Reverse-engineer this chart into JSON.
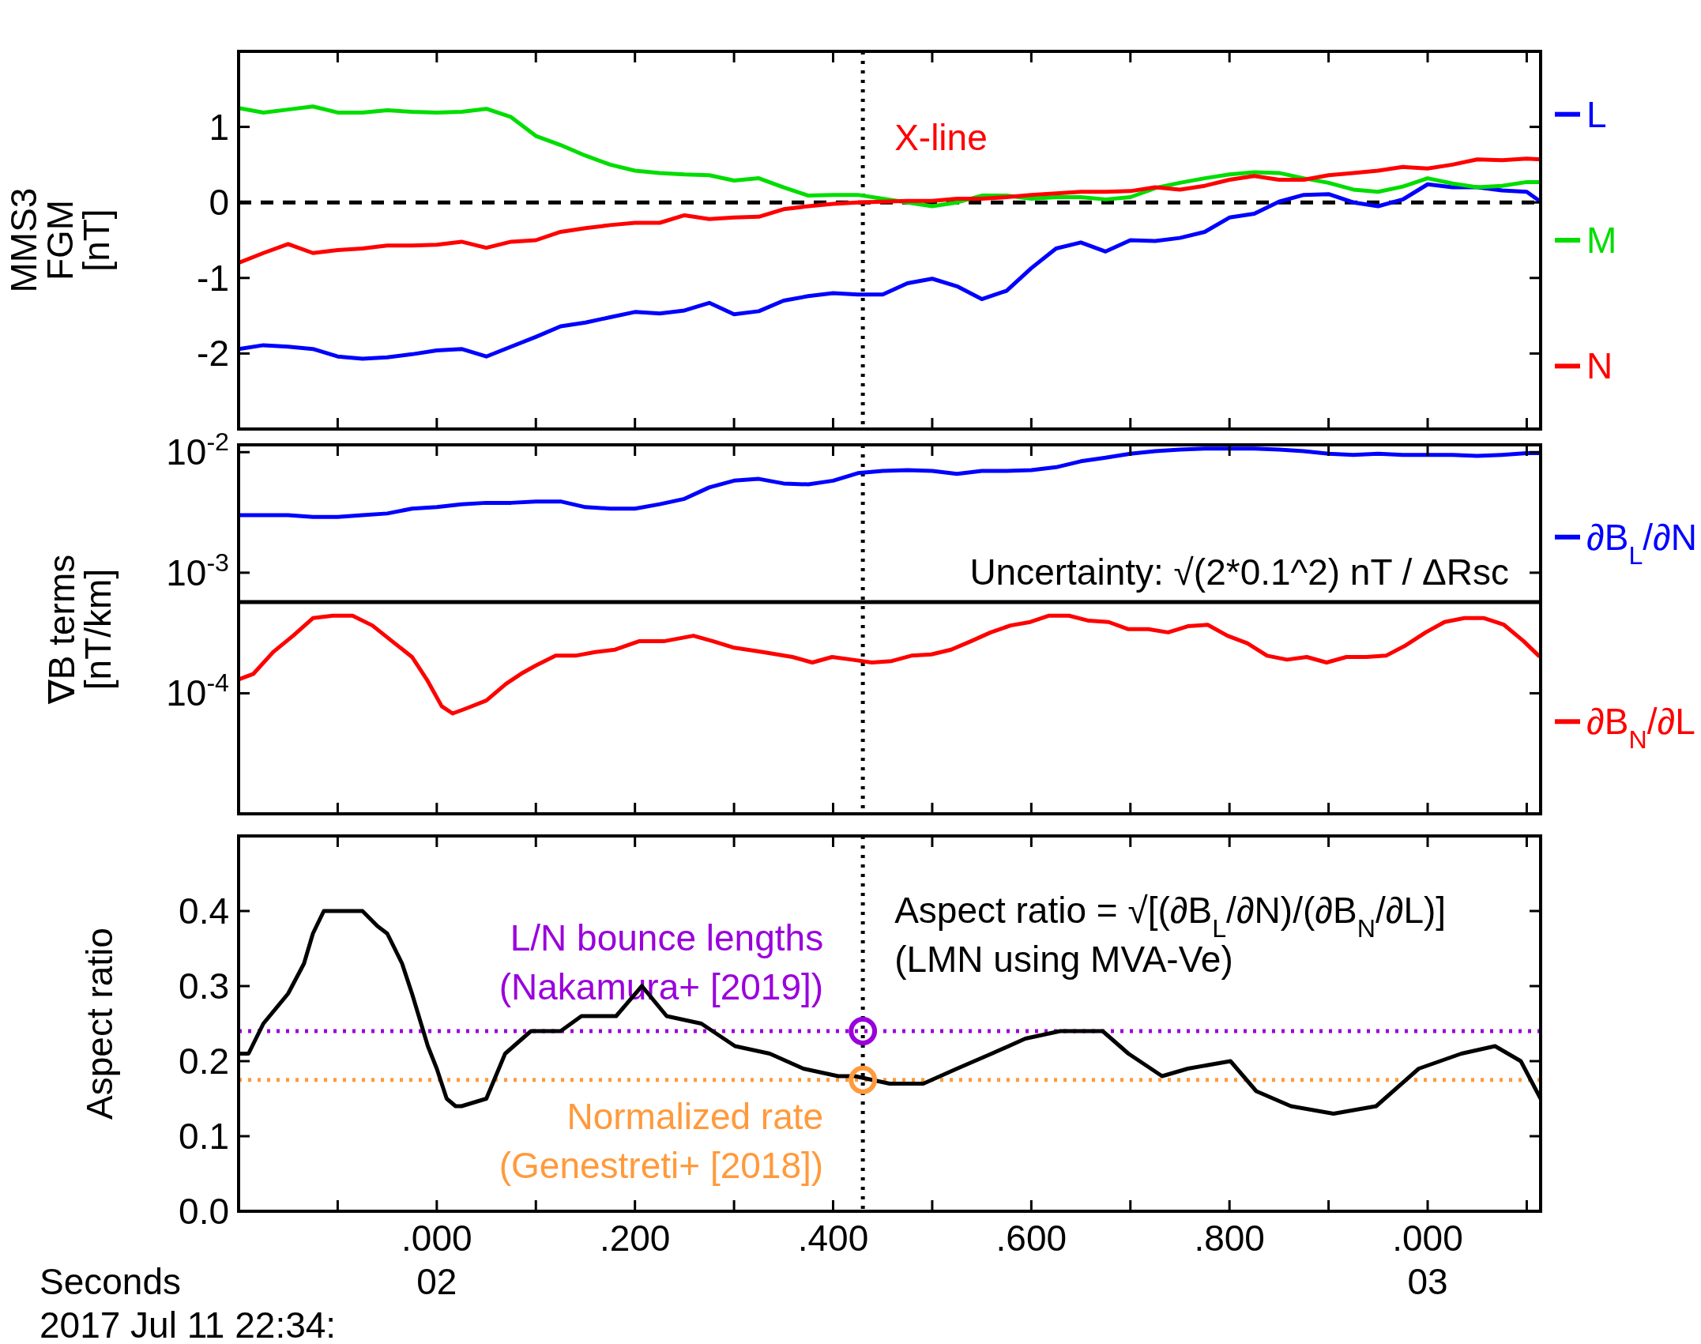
{
  "chart_data": [
    {
      "type": "line",
      "ylabel": "MMS3\nFGM\n[nT]",
      "xlim": [
        -0.2,
        1.114
      ],
      "ylim": [
        -3,
        2
      ],
      "xticks": [
        {
          "value": -0.1,
          "label": null
        },
        {
          "value": 0,
          "label": null
        },
        {
          "value": 0.1,
          "label": null
        },
        {
          "value": 0.2,
          "label": null
        },
        {
          "value": 0.3,
          "label": null
        },
        {
          "value": 0.4,
          "label": null
        },
        {
          "value": 0.5,
          "label": null
        },
        {
          "value": 0.6,
          "label": null
        },
        {
          "value": 0.7,
          "label": null
        },
        {
          "value": 0.8,
          "label": null
        },
        {
          "value": 0.9,
          "label": null
        },
        {
          "value": 1.0,
          "label": null
        },
        {
          "value": 1.1,
          "label": null
        }
      ],
      "yticks": [
        -2,
        -1,
        0,
        1
      ],
      "tick_labels": "y",
      "legend": "right",
      "x": [
        -0.2,
        -0.175,
        -0.15,
        -0.125,
        -0.1,
        -0.075,
        -0.05,
        -0.025,
        0,
        0.025,
        0.05,
        0.075,
        0.1,
        0.125,
        0.15,
        0.175,
        0.2,
        0.225,
        0.25,
        0.275,
        0.3,
        0.325,
        0.35,
        0.375,
        0.4,
        0.425,
        0.45,
        0.475,
        0.5,
        0.525,
        0.55,
        0.575,
        0.6,
        0.625,
        0.65,
        0.675,
        0.7,
        0.725,
        0.75,
        0.775,
        0.8,
        0.825,
        0.85,
        0.875,
        0.9,
        0.925,
        0.95,
        0.975,
        1,
        1.025,
        1.05,
        1.075,
        1.1,
        1.114
      ],
      "series": [
        {
          "name": "L",
          "color": "#0000ff",
          "values": [
            -1.94,
            -1.89,
            -1.91,
            -1.94,
            -2.04,
            -2.07,
            -2.05,
            -2.01,
            -1.96,
            -1.94,
            -2.04,
            -1.91,
            -1.78,
            -1.64,
            -1.59,
            -1.52,
            -1.45,
            -1.47,
            -1.43,
            -1.33,
            -1.48,
            -1.44,
            -1.3,
            -1.24,
            -1.2,
            -1.22,
            -1.22,
            -1.07,
            -1.01,
            -1.11,
            -1.28,
            -1.17,
            -0.87,
            -0.61,
            -0.53,
            -0.65,
            -0.5,
            -0.51,
            -0.47,
            -0.39,
            -0.2,
            -0.15,
            0.01,
            0.1,
            0.11,
            0.0,
            -0.05,
            0.04,
            0.24,
            0.2,
            0.2,
            0.16,
            0.14,
            0.01
          ]
        },
        {
          "name": "M",
          "color": "#00dd00",
          "values": [
            1.25,
            1.19,
            1.23,
            1.27,
            1.19,
            1.19,
            1.22,
            1.2,
            1.19,
            1.2,
            1.24,
            1.13,
            0.88,
            0.76,
            0.62,
            0.5,
            0.42,
            0.39,
            0.37,
            0.36,
            0.29,
            0.32,
            0.2,
            0.09,
            0.1,
            0.1,
            0.05,
            0.0,
            -0.05,
            0.0,
            0.09,
            0.09,
            0.05,
            0.07,
            0.07,
            0.04,
            0.07,
            0.19,
            0.26,
            0.32,
            0.37,
            0.4,
            0.39,
            0.32,
            0.26,
            0.17,
            0.14,
            0.21,
            0.32,
            0.25,
            0.2,
            0.22,
            0.27,
            0.27
          ]
        },
        {
          "name": "N",
          "color": "#ff0000",
          "values": [
            -0.8,
            -0.67,
            -0.55,
            -0.67,
            -0.63,
            -0.61,
            -0.57,
            -0.57,
            -0.56,
            -0.52,
            -0.6,
            -0.52,
            -0.5,
            -0.39,
            -0.34,
            -0.3,
            -0.27,
            -0.27,
            -0.17,
            -0.22,
            -0.2,
            -0.19,
            -0.09,
            -0.05,
            -0.02,
            0.0,
            0.01,
            0.02,
            0.02,
            0.05,
            0.05,
            0.07,
            0.1,
            0.12,
            0.14,
            0.14,
            0.15,
            0.2,
            0.17,
            0.22,
            0.3,
            0.35,
            0.3,
            0.3,
            0.36,
            0.39,
            0.42,
            0.47,
            0.45,
            0.5,
            0.57,
            0.56,
            0.58,
            0.57
          ]
        }
      ],
      "ref_lines": [
        {
          "axis": "x",
          "value": 0.43,
          "label": "X-line",
          "color": "#000000",
          "line_style": "dotted"
        },
        {
          "axis": "y",
          "value": 0,
          "color": "#000000",
          "line_style": "dashed"
        }
      ]
    },
    {
      "type": "line",
      "ylabel": "∇B terms\n[nT/km]",
      "xlim": [
        -0.2,
        1.114
      ],
      "ylim": [
        1e-05,
        0.0115
      ],
      "log": true,
      "xticks": [
        {
          "value": -0.1,
          "label": null
        },
        {
          "value": 0,
          "label": null
        },
        {
          "value": 0.1,
          "label": null
        },
        {
          "value": 0.2,
          "label": null
        },
        {
          "value": 0.3,
          "label": null
        },
        {
          "value": 0.4,
          "label": null
        },
        {
          "value": 0.5,
          "label": null
        },
        {
          "value": 0.6,
          "label": null
        },
        {
          "value": 0.7,
          "label": null
        },
        {
          "value": 0.8,
          "label": null
        },
        {
          "value": 0.9,
          "label": null
        },
        {
          "value": 1.0,
          "label": null
        },
        {
          "value": 1.1,
          "label": null
        }
      ],
      "yticks": [
        {
          "value": 0.01,
          "label": "10$^{-2}$"
        },
        {
          "value": 0.001,
          "label": "10$^{-3}$"
        },
        {
          "value": 0.0001,
          "label": "10$^{-4}$"
        }
      ],
      "tick_labels": "y",
      "legend": "right",
      "series": [
        {
          "name": "∂B$_{L}$/∂N",
          "color": "#0000ff",
          "x": [
            -0.2,
            -0.175,
            -0.15,
            -0.125,
            -0.1,
            -0.075,
            -0.05,
            -0.025,
            0,
            0.025,
            0.05,
            0.075,
            0.1,
            0.125,
            0.15,
            0.175,
            0.2,
            0.225,
            0.25,
            0.275,
            0.3,
            0.325,
            0.35,
            0.375,
            0.4,
            0.425,
            0.45,
            0.475,
            0.5,
            0.525,
            0.55,
            0.575,
            0.6,
            0.625,
            0.65,
            0.675,
            0.7,
            0.725,
            0.75,
            0.775,
            0.8,
            0.825,
            0.85,
            0.875,
            0.9,
            0.925,
            0.95,
            0.975,
            1,
            1.025,
            1.05,
            1.075,
            1.1,
            1.114
          ],
          "values": [
            0.003,
            0.003,
            0.003,
            0.0029,
            0.0029,
            0.003,
            0.0031,
            0.0034,
            0.0035,
            0.0037,
            0.0038,
            0.0038,
            0.0039,
            0.0039,
            0.0035,
            0.0034,
            0.0034,
            0.0037,
            0.0041,
            0.0051,
            0.0058,
            0.006,
            0.0055,
            0.0054,
            0.0058,
            0.0067,
            0.007,
            0.0071,
            0.007,
            0.0066,
            0.007,
            0.007,
            0.0071,
            0.0075,
            0.0084,
            0.009,
            0.0097,
            0.0102,
            0.0105,
            0.0107,
            0.0107,
            0.0107,
            0.0105,
            0.0102,
            0.0097,
            0.0095,
            0.0097,
            0.0095,
            0.0095,
            0.0095,
            0.0093,
            0.0095,
            0.0098,
            0.0098
          ]
        },
        {
          "name": "∂B$_{N}$/∂L",
          "color": "#ff0000",
          "x": [
            -0.2,
            -0.185,
            -0.165,
            -0.145,
            -0.125,
            -0.105,
            -0.085,
            -0.065,
            -0.045,
            -0.025,
            -0.01,
            0.005,
            0.016,
            0.03,
            0.05,
            0.07,
            0.085,
            0.1,
            0.12,
            0.14,
            0.16,
            0.18,
            0.204,
            0.229,
            0.259,
            0.279,
            0.299,
            0.329,
            0.359,
            0.379,
            0.399,
            0.419,
            0.439,
            0.459,
            0.479,
            0.499,
            0.519,
            0.539,
            0.559,
            0.579,
            0.599,
            0.618,
            0.638,
            0.658,
            0.678,
            0.698,
            0.718,
            0.738,
            0.758,
            0.778,
            0.798,
            0.818,
            0.838,
            0.858,
            0.878,
            0.898,
            0.918,
            0.938,
            0.958,
            0.978,
            0.998,
            1.017,
            1.037,
            1.057,
            1.077,
            1.097,
            1.112
          ],
          "values": [
            0.00013,
            0.000145,
            0.00022,
            0.0003,
            0.00042,
            0.00044,
            0.00044,
            0.000365,
            0.00027,
            0.0002,
            0.00013,
            7.8e-05,
            6.8e-05,
            7.5e-05,
            8.7e-05,
            0.00012,
            0.000145,
            0.00017,
            0.000205,
            0.000205,
            0.00022,
            0.00023,
            0.00027,
            0.00027,
            0.0003,
            0.00027,
            0.00024,
            0.00022,
            0.0002,
            0.00018,
            0.0002,
            0.00019,
            0.00018,
            0.000185,
            0.000205,
            0.00021,
            0.00023,
            0.00027,
            0.00032,
            0.000365,
            0.00039,
            0.00044,
            0.00044,
            0.0004,
            0.00039,
            0.00034,
            0.00034,
            0.00032,
            0.00036,
            0.00037,
            0.0003,
            0.00026,
            0.000205,
            0.00019,
            0.0002,
            0.00018,
            0.0002,
            0.0002,
            0.000205,
            0.00025,
            0.00032,
            0.00039,
            0.00042,
            0.00042,
            0.00037,
            0.00027,
            0.000205
          ]
        }
      ],
      "ref_lines": [
        {
          "axis": "x",
          "value": 0.43,
          "color": "#000000",
          "line_style": "dotted"
        },
        {
          "axis": "y",
          "value": 0.00057,
          "label": "Uncertainty: √(2*0.1^2) nT / ΔRsc",
          "color": "#000000",
          "line_style": "solid"
        }
      ]
    },
    {
      "type": "line",
      "ylabel": "Aspect ratio",
      "xlabel": "Seconds",
      "xlim": [
        -0.2,
        1.114
      ],
      "ylim": [
        0,
        0.5
      ],
      "xticks": [
        {
          "value": -0.1,
          "label": null
        },
        {
          "value": 0,
          "label": ".000\n02"
        },
        {
          "value": 0.1,
          "label": null
        },
        {
          "value": 0.2,
          "label": ".200"
        },
        {
          "value": 0.3,
          "label": null
        },
        {
          "value": 0.4,
          "label": ".400"
        },
        {
          "value": 0.5,
          "label": null
        },
        {
          "value": 0.6,
          "label": ".600"
        },
        {
          "value": 0.7,
          "label": null
        },
        {
          "value": 0.8,
          "label": ".800"
        },
        {
          "value": 0.9,
          "label": null
        },
        {
          "value": 1.0,
          "label": ".000\n03"
        },
        {
          "value": 1.1,
          "label": null
        }
      ],
      "yticks": [
        {
          "value": 0,
          "label": "0.0"
        },
        0.1,
        0.2,
        0.3,
        0.4
      ],
      "series": [
        {
          "color": "#000000",
          "x": [
            -0.2,
            -0.19,
            -0.175,
            -0.15,
            -0.134,
            -0.125,
            -0.114,
            -0.1,
            -0.075,
            -0.06,
            -0.05,
            -0.035,
            -0.025,
            -0.009,
            0,
            0.01,
            0.019,
            0.025,
            0.05,
            0.069,
            0.095,
            0.125,
            0.146,
            0.181,
            0.207,
            0.232,
            0.267,
            0.301,
            0.336,
            0.37,
            0.405,
            0.422,
            0.457,
            0.491,
            0.525,
            0.56,
            0.594,
            0.629,
            0.655,
            0.672,
            0.698,
            0.732,
            0.758,
            0.801,
            0.827,
            0.862,
            0.905,
            0.948,
            0.991,
            1.034,
            1.068,
            1.094,
            1.114
          ],
          "values": [
            0.21,
            0.21,
            0.25,
            0.29,
            0.33,
            0.37,
            0.4,
            0.4,
            0.4,
            0.38,
            0.37,
            0.33,
            0.29,
            0.22,
            0.19,
            0.15,
            0.14,
            0.14,
            0.15,
            0.21,
            0.24,
            0.24,
            0.26,
            0.26,
            0.3,
            0.26,
            0.25,
            0.22,
            0.21,
            0.19,
            0.18,
            0.18,
            0.17,
            0.17,
            0.19,
            0.21,
            0.23,
            0.24,
            0.24,
            0.24,
            0.21,
            0.18,
            0.19,
            0.2,
            0.16,
            0.14,
            0.13,
            0.14,
            0.19,
            0.21,
            0.22,
            0.2,
            0.15
          ]
        },
        {
          "type": "scatter",
          "color": "#9a00dc",
          "x": [
            0.43
          ],
          "values": [
            0.24
          ],
          "marker": "circle"
        },
        {
          "type": "scatter",
          "color": "#ff9a3c",
          "x": [
            0.43
          ],
          "values": [
            0.175
          ],
          "marker": "circle"
        }
      ],
      "ref_lines": [
        {
          "axis": "x",
          "value": 0.43,
          "color": "#000000",
          "line_style": "dotted"
        },
        {
          "axis": "y",
          "value": 0.24,
          "label": "L/N bounce lengths\n(Nakamura+ [2019])",
          "color": "#9a00dc",
          "line_style": "dotted"
        },
        {
          "axis": "y",
          "value": 0.175,
          "label": "Normalized rate\n(Genestreti+ [2018])",
          "color": "#ff9a3c",
          "line_style": "dotted"
        }
      ],
      "annotations": [
        "Aspect ratio = √[(∂B$_{L}$/∂N)/(∂B$_{N}$/∂L)]\n(LMN using MVA-Ve)",
        "2017 Jul 11 22:34:"
      ]
    }
  ]
}
